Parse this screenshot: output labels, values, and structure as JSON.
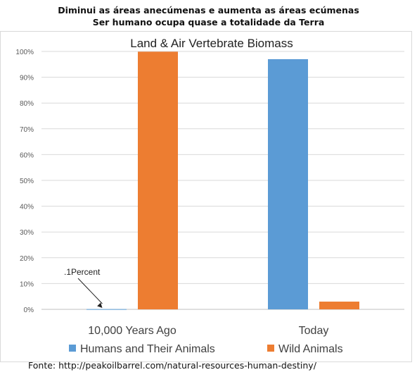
{
  "header": {
    "line1": "Diminui as áreas anecúmenas e aumenta as áreas ecúmenas",
    "line2": "Ser humano ocupa quase a totalidade da Terra"
  },
  "footer": {
    "source": "Fonte: http://peakoilbarrel.com/natural-resources-human-destiny/"
  },
  "chart_data": {
    "type": "bar",
    "title": "Land & Air Vertebrate  Biomass",
    "categories": [
      "10,000 Years Ago",
      "Today"
    ],
    "series": [
      {
        "name": "Humans and Their Animals",
        "color": "#5b9bd5",
        "values": [
          0.1,
          97
        ]
      },
      {
        "name": "Wild Animals",
        "color": "#ed7d31",
        "values": [
          99.9,
          3
        ]
      }
    ],
    "ylim": [
      0,
      100
    ],
    "yticks": [
      "0%",
      "10%",
      "20%",
      "30%",
      "40%",
      "50%",
      "60%",
      "70%",
      "80%",
      "90%",
      "100%"
    ],
    "grid": true,
    "legend": "bottom",
    "annotation": {
      "text": ".1Percent"
    }
  }
}
